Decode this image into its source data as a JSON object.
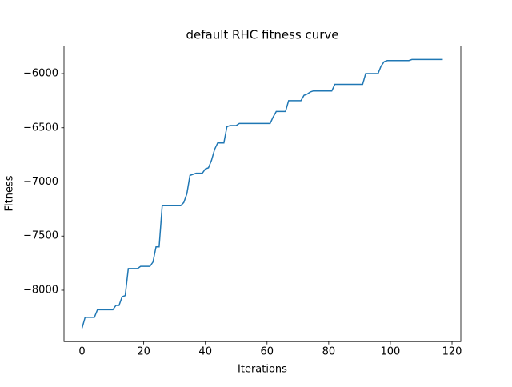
{
  "chart_data": {
    "type": "line",
    "title": "default RHC fitness curve",
    "x_label": "Iterations",
    "y_label": "Fitness",
    "x": [
      0,
      1,
      2,
      3,
      4,
      5,
      6,
      7,
      8,
      9,
      10,
      11,
      12,
      13,
      14,
      15,
      16,
      17,
      18,
      19,
      20,
      21,
      22,
      23,
      24,
      25,
      26,
      27,
      28,
      29,
      30,
      31,
      32,
      33,
      34,
      35,
      36,
      37,
      38,
      39,
      40,
      41,
      42,
      43,
      44,
      45,
      46,
      47,
      48,
      49,
      50,
      51,
      52,
      53,
      54,
      55,
      56,
      57,
      58,
      59,
      60,
      61,
      62,
      63,
      64,
      65,
      66,
      67,
      68,
      69,
      70,
      71,
      72,
      73,
      74,
      75,
      76,
      77,
      78,
      79,
      80,
      81,
      82,
      83,
      84,
      85,
      86,
      87,
      88,
      89,
      90,
      91,
      92,
      93,
      94,
      95,
      96,
      97,
      98,
      99,
      100,
      101,
      102,
      103,
      104,
      105,
      106,
      107,
      108,
      109,
      110,
      111,
      112,
      113,
      114,
      115,
      116,
      117
    ],
    "series": [
      {
        "name": "fitness",
        "color": "#1f77b4",
        "values": [
          -8350,
          -8250,
          -8250,
          -8250,
          -8250,
          -8180,
          -8180,
          -8180,
          -8180,
          -8180,
          -8180,
          -8140,
          -8140,
          -8060,
          -8050,
          -7800,
          -7800,
          -7800,
          -7800,
          -7780,
          -7780,
          -7780,
          -7780,
          -7740,
          -7600,
          -7600,
          -7220,
          -7220,
          -7220,
          -7220,
          -7220,
          -7220,
          -7220,
          -7190,
          -7110,
          -6940,
          -6930,
          -6920,
          -6920,
          -6920,
          -6880,
          -6870,
          -6800,
          -6700,
          -6640,
          -6640,
          -6640,
          -6490,
          -6480,
          -6480,
          -6480,
          -6460,
          -6460,
          -6460,
          -6460,
          -6460,
          -6460,
          -6460,
          -6460,
          -6460,
          -6460,
          -6460,
          -6400,
          -6350,
          -6350,
          -6350,
          -6350,
          -6250,
          -6250,
          -6250,
          -6250,
          -6250,
          -6200,
          -6190,
          -6170,
          -6160,
          -6160,
          -6160,
          -6160,
          -6160,
          -6160,
          -6160,
          -6100,
          -6100,
          -6100,
          -6100,
          -6100,
          -6100,
          -6100,
          -6100,
          -6100,
          -6100,
          -6000,
          -6000,
          -6000,
          -6000,
          -6000,
          -5930,
          -5890,
          -5880,
          -5880,
          -5880,
          -5880,
          -5880,
          -5880,
          -5880,
          -5880,
          -5870,
          -5870,
          -5870,
          -5870,
          -5870,
          -5870,
          -5870,
          -5870,
          -5870,
          -5870,
          -5870
        ]
      }
    ],
    "xlim": [
      -5.85,
      122.85
    ],
    "ylim": [
      -8474,
      -5746
    ],
    "xticks": [
      0,
      20,
      40,
      60,
      80,
      100,
      120
    ],
    "yticks": [
      {
        "value": -8000,
        "label": "−8000"
      },
      {
        "value": -7500,
        "label": "−7500"
      },
      {
        "value": -7000,
        "label": "−7000"
      },
      {
        "value": -6500,
        "label": "−6500"
      },
      {
        "value": -6000,
        "label": "−6000"
      }
    ]
  }
}
